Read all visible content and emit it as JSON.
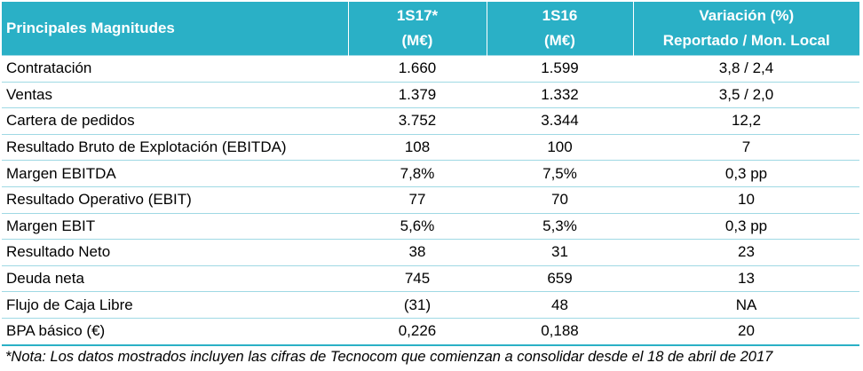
{
  "header": {
    "label": "Principales Magnitudes",
    "col1": [
      "1S17*",
      "(M€)"
    ],
    "col2": [
      "1S16",
      "(M€)"
    ],
    "col3": [
      "Variación (%)",
      "Reportado / Mon. Local"
    ]
  },
  "colors": {
    "header_bg": "#2ab0c6",
    "header_text": "#ffffff",
    "row_border": "#9fd9e4"
  },
  "rows": [
    {
      "label": "Contratación",
      "s17": "1.660",
      "s16": "1.599",
      "var": "3,8 / 2,4"
    },
    {
      "label": "Ventas",
      "s17": "1.379",
      "s16": "1.332",
      "var": "3,5 / 2,0"
    },
    {
      "label": "Cartera de pedidos",
      "s17": "3.752",
      "s16": "3.344",
      "var": "12,2"
    },
    {
      "label": "Resultado Bruto de Explotación (EBITDA)",
      "s17": "108",
      "s16": "100",
      "var": "7"
    },
    {
      "label": "Margen EBITDA",
      "s17": "7,8%",
      "s16": "7,5%",
      "var": "0,3 pp"
    },
    {
      "label": "Resultado Operativo (EBIT)",
      "s17": "77",
      "s16": "70",
      "var": "10"
    },
    {
      "label": "Margen EBIT",
      "s17": "5,6%",
      "s16": "5,3%",
      "var": "0,3 pp"
    },
    {
      "label": "Resultado Neto",
      "s17": "38",
      "s16": "31",
      "var": "23"
    },
    {
      "label": "Deuda neta",
      "s17": "745",
      "s16": "659",
      "var": "13"
    },
    {
      "label": "Flujo de Caja Libre",
      "s17": "(31)",
      "s16": "48",
      "var": "NA"
    },
    {
      "label": "BPA básico (€)",
      "s17": "0,226",
      "s16": "0,188",
      "var": "20"
    }
  ],
  "footnote": "*Nota: Los datos mostrados incluyen las cifras de Tecnocom que comienzan a consolidar desde el 18 de abril de 2017"
}
